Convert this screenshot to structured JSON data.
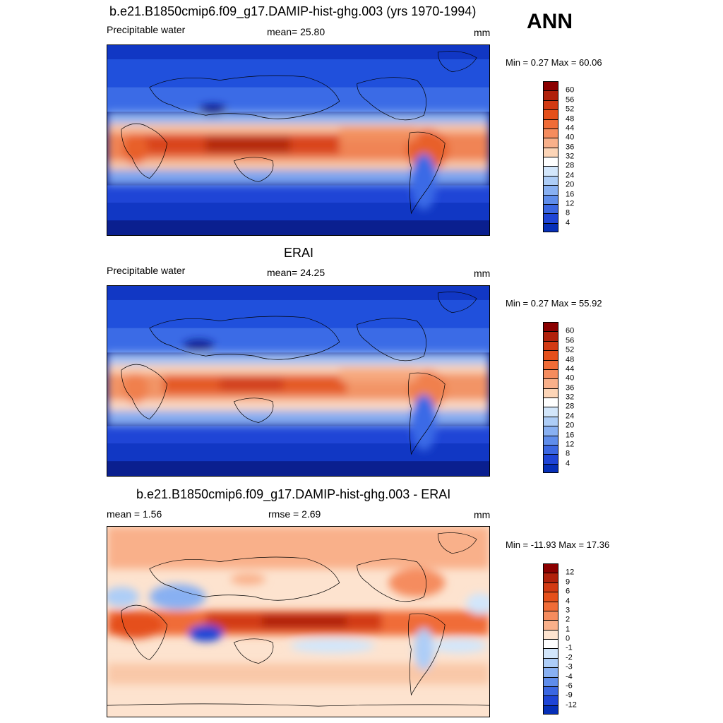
{
  "season": "ANN",
  "panels": [
    {
      "title": "b.e21.B1850cmip6.f09_g17.DAMIP-hist-ghg.003 (yrs 1970-1994)",
      "left_label": "Precipitable water",
      "center_label": "mean=  25.80",
      "right_label": "mm",
      "minmax": "Min =   0.27 Max =  60.06",
      "colorbar": {
        "ticks": [
          "60",
          "56",
          "52",
          "48",
          "44",
          "40",
          "36",
          "32",
          "28",
          "24",
          "20",
          "16",
          "12",
          "8",
          "4"
        ],
        "colors": [
          "#8b0000",
          "#b0210b",
          "#d23a13",
          "#e5501b",
          "#f06c37",
          "#f58c5e",
          "#f9b08a",
          "#fdd5b7",
          "#ffffff",
          "#d2e6fb",
          "#adcdf7",
          "#88b0f2",
          "#5f8deb",
          "#3b67e2",
          "#1f45d6",
          "#062fb8"
        ]
      }
    },
    {
      "title": "ERAI",
      "left_label": "Precipitable water",
      "center_label": "mean=  24.25",
      "right_label": "mm",
      "minmax": "Min =   0.27 Max =  55.92",
      "colorbar": {
        "ticks": [
          "60",
          "56",
          "52",
          "48",
          "44",
          "40",
          "36",
          "32",
          "28",
          "24",
          "20",
          "16",
          "12",
          "8",
          "4"
        ],
        "colors": [
          "#8b0000",
          "#b0210b",
          "#d23a13",
          "#e5501b",
          "#f06c37",
          "#f58c5e",
          "#f9b08a",
          "#fdd5b7",
          "#ffffff",
          "#d2e6fb",
          "#adcdf7",
          "#88b0f2",
          "#5f8deb",
          "#3b67e2",
          "#1f45d6",
          "#062fb8"
        ]
      }
    },
    {
      "title": "b.e21.B1850cmip6.f09_g17.DAMIP-hist-ghg.003 - ERAI",
      "left_label": "mean =   1.56",
      "center_label": "rmse =   2.69",
      "right_label": "mm",
      "minmax": "Min = -11.93 Max =  17.36",
      "colorbar": {
        "ticks": [
          "12",
          "9",
          "6",
          "4",
          "3",
          "2",
          "1",
          "0",
          "-1",
          "-2",
          "-3",
          "-4",
          "-6",
          "-9",
          "-12"
        ],
        "colors": [
          "#8b0000",
          "#b0210b",
          "#d23a13",
          "#e5501b",
          "#f06c37",
          "#f58c5e",
          "#f9b08a",
          "#fde3cf",
          "#ffffff",
          "#d2e6fb",
          "#adcdf7",
          "#88b0f2",
          "#5f8deb",
          "#3b67e2",
          "#1f45d6",
          "#062fb8"
        ]
      }
    }
  ]
}
